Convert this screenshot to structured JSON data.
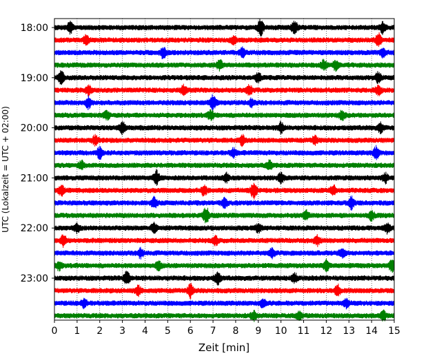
{
  "chart_data": {
    "type": "line",
    "title": "",
    "xlabel": "Zeit  [min]",
    "ylabel": "UTC (Lokalzeit = UTC + 02:00)",
    "xlim": [
      0,
      15
    ],
    "x_ticks": [
      "0",
      "1",
      "2",
      "3",
      "4",
      "5",
      "6",
      "7",
      "8",
      "9",
      "10",
      "11",
      "12",
      "13",
      "14",
      "15"
    ],
    "y_tick_labels": [
      "18:00",
      "19:00",
      "20:00",
      "21:00",
      "22:00",
      "23:00"
    ],
    "rows_per_hour": 4,
    "grid": "vertical dotted at each minute",
    "legend": "none",
    "series_colors": [
      "#000000",
      "#ff0000",
      "#0000ff",
      "#008000"
    ],
    "traces": [
      {
        "start": "18:00",
        "events": [
          [
            0.7,
            1.2
          ],
          [
            9.1,
            1.8
          ],
          [
            10.6,
            1.5
          ],
          [
            14.5,
            1.3
          ]
        ]
      },
      {
        "start": "18:15",
        "events": [
          [
            1.4,
            1.0
          ],
          [
            7.9,
            0.8
          ],
          [
            14.3,
            1.5
          ]
        ]
      },
      {
        "start": "18:30",
        "events": [
          [
            4.8,
            1.2
          ],
          [
            8.3,
            0.9
          ],
          [
            14.5,
            1.0
          ]
        ]
      },
      {
        "start": "18:45",
        "events": [
          [
            7.3,
            1.0
          ],
          [
            11.9,
            1.0
          ],
          [
            12.4,
            1.0
          ]
        ]
      },
      {
        "start": "19:00",
        "events": [
          [
            0.3,
            1.4
          ],
          [
            9.0,
            1.0
          ],
          [
            14.3,
            1.2
          ]
        ]
      },
      {
        "start": "19:15",
        "events": [
          [
            1.5,
            1.0
          ],
          [
            5.7,
            1.0
          ],
          [
            8.6,
            1.1
          ],
          [
            14.3,
            1.0
          ]
        ]
      },
      {
        "start": "19:30",
        "events": [
          [
            1.5,
            1.2
          ],
          [
            7.0,
            1.6
          ],
          [
            8.7,
            0.8
          ]
        ]
      },
      {
        "start": "19:45",
        "events": [
          [
            2.3,
            0.9
          ],
          [
            6.9,
            1.1
          ],
          [
            12.7,
            0.9
          ]
        ]
      },
      {
        "start": "20:00",
        "events": [
          [
            3.0,
            1.4
          ],
          [
            10.0,
            1.2
          ],
          [
            14.4,
            1.0
          ]
        ]
      },
      {
        "start": "20:15",
        "events": [
          [
            1.8,
            1.0
          ],
          [
            8.3,
            1.0
          ],
          [
            11.5,
            0.9
          ]
        ]
      },
      {
        "start": "20:30",
        "events": [
          [
            2.0,
            1.3
          ],
          [
            7.9,
            0.9
          ],
          [
            14.2,
            1.3
          ]
        ]
      },
      {
        "start": "20:45",
        "events": [
          [
            1.2,
            0.9
          ],
          [
            9.5,
            0.9
          ]
        ]
      },
      {
        "start": "21:00",
        "events": [
          [
            4.5,
            1.6
          ],
          [
            7.6,
            0.9
          ],
          [
            10.0,
            1.1
          ],
          [
            14.6,
            1.0
          ]
        ]
      },
      {
        "start": "21:15",
        "events": [
          [
            0.3,
            1.2
          ],
          [
            6.6,
            1.1
          ],
          [
            8.8,
            1.7
          ],
          [
            12.3,
            1.1
          ]
        ]
      },
      {
        "start": "21:30",
        "events": [
          [
            4.4,
            1.1
          ],
          [
            7.5,
            1.0
          ],
          [
            13.1,
            1.4
          ]
        ]
      },
      {
        "start": "21:45",
        "events": [
          [
            6.7,
            1.9
          ],
          [
            11.1,
            1.0
          ],
          [
            14.0,
            1.0
          ]
        ]
      },
      {
        "start": "22:00",
        "events": [
          [
            1.0,
            0.9
          ],
          [
            4.4,
            1.1
          ],
          [
            9.0,
            0.9
          ],
          [
            14.7,
            1.0
          ]
        ]
      },
      {
        "start": "22:15",
        "events": [
          [
            0.4,
            1.2
          ],
          [
            7.1,
            1.0
          ],
          [
            11.6,
            1.0
          ]
        ]
      },
      {
        "start": "22:30",
        "events": [
          [
            3.8,
            1.0
          ],
          [
            9.6,
            0.9
          ],
          [
            12.7,
            1.1
          ]
        ]
      },
      {
        "start": "22:45",
        "events": [
          [
            0.2,
            0.9
          ],
          [
            4.6,
            0.9
          ],
          [
            12.0,
            1.2
          ],
          [
            14.9,
            1.3
          ]
        ]
      },
      {
        "start": "23:00",
        "events": [
          [
            3.2,
            1.4
          ],
          [
            7.2,
            1.3
          ],
          [
            10.6,
            1.0
          ]
        ]
      },
      {
        "start": "23:15",
        "events": [
          [
            3.7,
            1.0
          ],
          [
            6.0,
            1.5
          ],
          [
            12.5,
            1.2
          ]
        ]
      },
      {
        "start": "23:30",
        "events": [
          [
            1.3,
            0.9
          ],
          [
            9.2,
            1.0
          ],
          [
            12.9,
            0.9
          ]
        ]
      },
      {
        "start": "23:45",
        "events": [
          [
            8.8,
            1.0
          ],
          [
            10.8,
            0.9
          ],
          [
            14.5,
            1.2
          ]
        ]
      }
    ]
  }
}
